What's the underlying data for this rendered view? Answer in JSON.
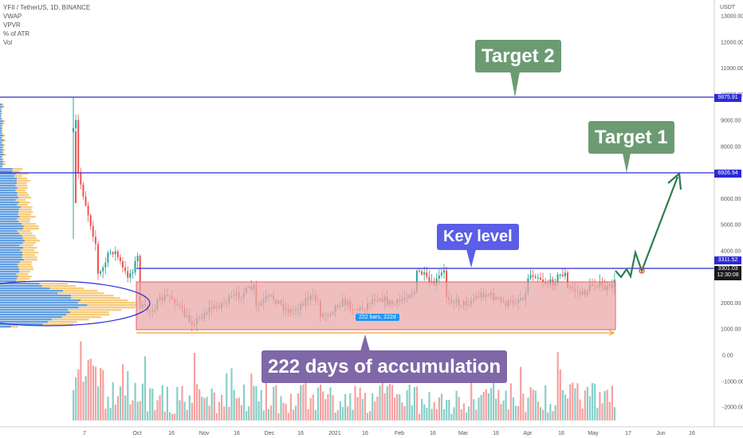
{
  "legend": {
    "symbol": "YFII / TetherUS, 1D, BINANCE",
    "indicators": [
      "VWAP",
      "VPVR",
      "% of ATR",
      "Vol"
    ]
  },
  "price_axis": {
    "currency": "USDT",
    "ticks": [
      "13000.00",
      "12000.00",
      "11000.00",
      "10000.00",
      "9000.00",
      "8000.00",
      "7000.00",
      "6000.00",
      "5000.00",
      "4000.00",
      "3000.00",
      "2000.00",
      "1000.00"
    ]
  },
  "indicator_axis": {
    "ticks": [
      "0.00",
      "-1000.00",
      "-2000.00"
    ]
  },
  "date_axis": {
    "labels": [
      "7",
      "Oct",
      "16",
      "Nov",
      "16",
      "Dec",
      "16",
      "2021",
      "16",
      "Feb",
      "16",
      "Mar",
      "16",
      "Apr",
      "16",
      "May",
      "17",
      "Jun",
      "16"
    ]
  },
  "levels": {
    "target_2": "9875.91",
    "target_1": "6926.94",
    "key_level": "3311.52",
    "current_price": "3301.03",
    "countdown": "12:30:08"
  },
  "annotations": {
    "target_2": "Target 2",
    "target_1": "Target 1",
    "key_level": "Key level",
    "accumulation": "222 days of accumulation",
    "range_badge": "222 bars, 222d"
  },
  "colors": {
    "level_line": "#2a2ad8",
    "range_fill": "#e9a9a9",
    "range_border": "#e06666",
    "projection": "#2e7d4f",
    "candle_up": "#26a69a",
    "candle_down": "#ef5350",
    "vpvr_up": "#f5c160",
    "vpvr_down": "#2f7fd6",
    "callout_target": "#6c9b73",
    "callout_key": "#5b5ee6",
    "callout_accumulation": "#8067a8"
  }
}
